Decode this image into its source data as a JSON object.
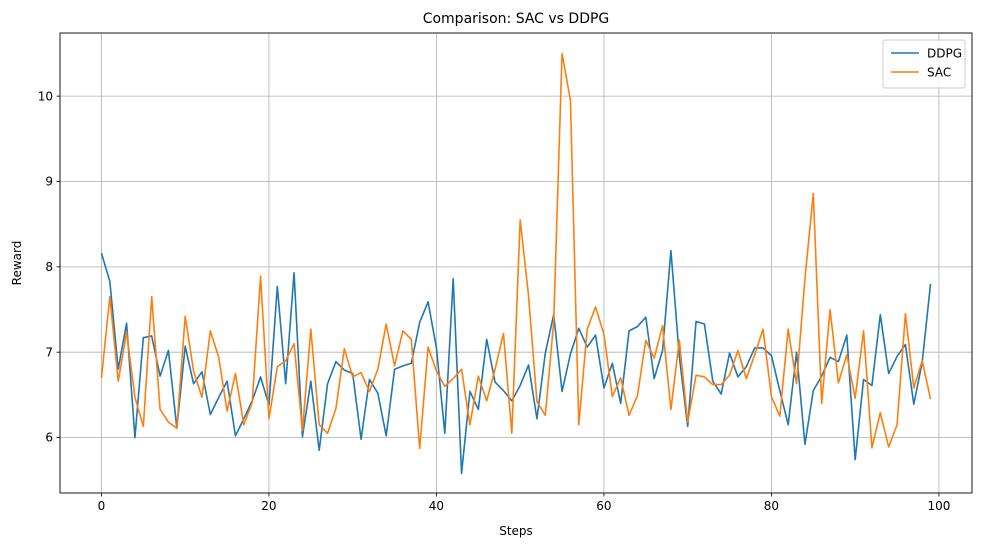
{
  "chart_data": {
    "type": "line",
    "title": "Comparison: SAC vs DDPG",
    "xlabel": "Steps",
    "ylabel": "Reward",
    "xlim": [
      -4.95,
      103.95
    ],
    "ylim": [
      5.35,
      10.74
    ],
    "xticks": [
      0,
      20,
      40,
      60,
      80,
      100
    ],
    "yticks": [
      6,
      7,
      8,
      9,
      10
    ],
    "xtick_labels": [
      "0",
      "20",
      "40",
      "60",
      "80",
      "100"
    ],
    "ytick_labels": [
      "6",
      "7",
      "8",
      "9",
      "10"
    ],
    "grid": true,
    "legend_position": "top-right",
    "series": [
      {
        "name": "DDPG",
        "color": "#1f77b4",
        "values": [
          8.16,
          7.83,
          6.8,
          7.34,
          6.0,
          7.17,
          7.19,
          6.72,
          7.02,
          6.11,
          7.07,
          6.63,
          6.77,
          6.27,
          6.47,
          6.66,
          6.02,
          6.22,
          6.43,
          6.71,
          6.38,
          7.77,
          6.63,
          7.93,
          6.01,
          6.66,
          5.85,
          6.63,
          6.89,
          6.79,
          6.75,
          5.98,
          6.68,
          6.52,
          6.02,
          6.8,
          6.84,
          6.87,
          7.35,
          7.59,
          7.05,
          6.05,
          7.86,
          5.58,
          6.54,
          6.33,
          7.15,
          6.65,
          6.55,
          6.43,
          6.61,
          6.85,
          6.22,
          6.99,
          7.44,
          6.54,
          6.98,
          7.28,
          7.06,
          7.2,
          6.58,
          6.87,
          6.4,
          7.25,
          7.3,
          7.41,
          6.69,
          7.02,
          8.19,
          6.95,
          6.13,
          7.36,
          7.33,
          6.66,
          6.51,
          6.99,
          6.71,
          6.83,
          7.05,
          7.05,
          6.96,
          6.55,
          6.15,
          7.0,
          5.92,
          6.55,
          6.72,
          6.94,
          6.89,
          7.2,
          5.74,
          6.68,
          6.61,
          7.44,
          6.75,
          6.95,
          7.09,
          6.39,
          6.88,
          7.8
        ]
      },
      {
        "name": "SAC",
        "color": "#ff7f0e",
        "values": [
          6.7,
          7.65,
          6.66,
          7.23,
          6.47,
          6.13,
          7.65,
          6.33,
          6.18,
          6.11,
          7.42,
          6.78,
          6.47,
          7.25,
          6.94,
          6.31,
          6.75,
          6.15,
          6.41,
          7.89,
          6.22,
          6.83,
          6.9,
          7.1,
          6.08,
          7.27,
          6.15,
          6.05,
          6.34,
          7.04,
          6.71,
          6.76,
          6.54,
          6.8,
          7.33,
          6.84,
          7.25,
          7.15,
          5.87,
          7.06,
          6.78,
          6.6,
          6.69,
          6.8,
          6.15,
          6.72,
          6.43,
          6.8,
          7.22,
          6.05,
          8.55,
          7.66,
          6.42,
          6.26,
          7.35,
          10.5,
          9.95,
          6.15,
          7.27,
          7.53,
          7.21,
          6.48,
          6.7,
          6.26,
          6.49,
          7.14,
          6.93,
          7.31,
          6.33,
          7.14,
          6.18,
          6.73,
          6.71,
          6.62,
          6.62,
          6.73,
          7.02,
          6.69,
          6.97,
          7.27,
          6.48,
          6.25,
          7.27,
          6.63,
          7.86,
          8.86,
          6.4,
          7.5,
          6.64,
          6.97,
          6.46,
          7.25,
          5.88,
          6.29,
          5.89,
          6.15,
          7.45,
          6.58,
          6.9,
          6.45
        ]
      }
    ]
  }
}
